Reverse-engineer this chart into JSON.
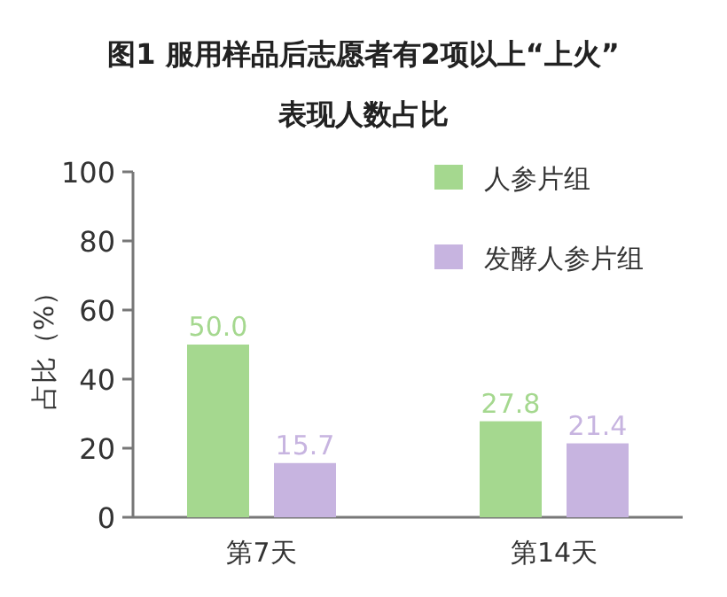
{
  "chart_data": {
    "type": "bar",
    "title": "图1 服用样品后志愿者有2项以上“上火”表现人数占比",
    "ylabel": "占比（%）",
    "categories": [
      "第7天",
      "第14天"
    ],
    "series": [
      {
        "name": "人参片组",
        "color": "#a5d88f",
        "values": [
          50.0,
          27.8
        ],
        "value_labels": [
          "50.0",
          "27.8"
        ]
      },
      {
        "name": "发酵人参片组",
        "color": "#c7b4e0",
        "values": [
          15.7,
          21.4
        ],
        "value_labels": [
          "15.7",
          "21.4"
        ]
      }
    ],
    "ylim": [
      0,
      100
    ],
    "yticks": [
      0,
      20,
      40,
      60,
      80,
      100
    ],
    "grid": false,
    "legend": "top right"
  }
}
